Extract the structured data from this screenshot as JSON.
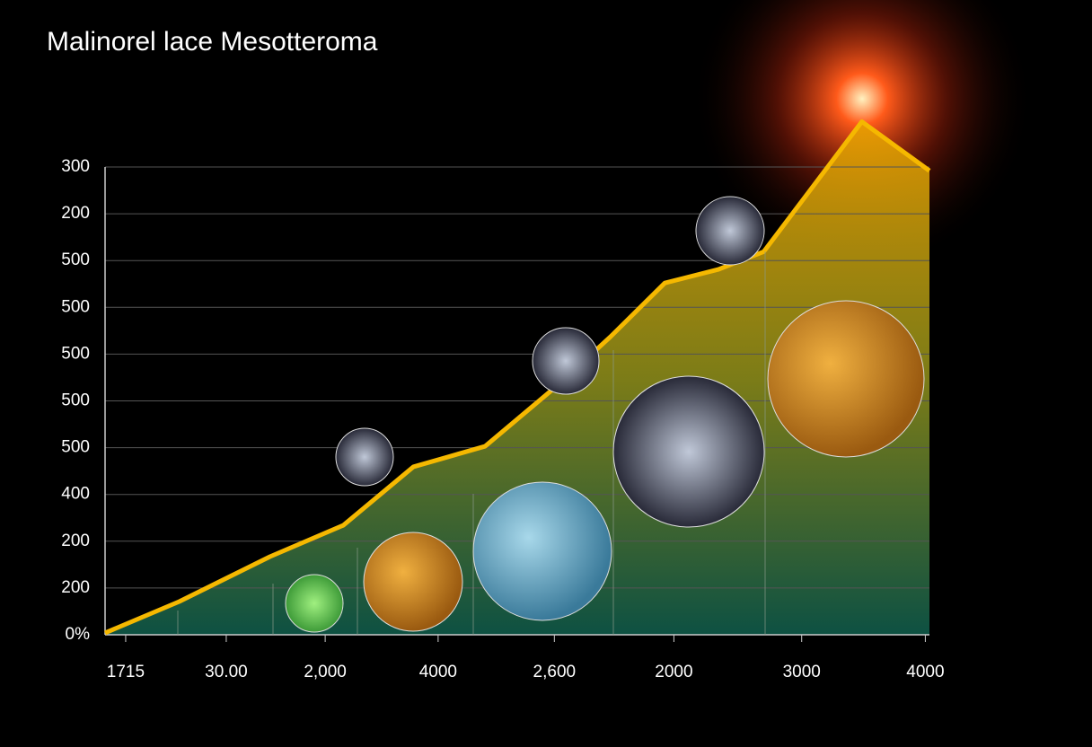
{
  "chart_data": {
    "type": "line",
    "title": "Malinorel lace Mesotteroma",
    "xlim": [
      0,
      10
    ],
    "xticks": [
      {
        "value": 0.25,
        "label": "1715"
      },
      {
        "value": 1.47,
        "label": "30.00"
      },
      {
        "value": 2.67,
        "label": "2,000"
      },
      {
        "value": 4.04,
        "label": "4000"
      },
      {
        "value": 5.45,
        "label": "2,600"
      },
      {
        "value": 6.9,
        "label": "2000"
      },
      {
        "value": 8.45,
        "label": "3000"
      },
      {
        "value": 9.95,
        "label": "4000"
      }
    ],
    "ylim": [
      0,
      10
    ],
    "yticks": [
      {
        "value": 0,
        "label": "0%"
      },
      {
        "value": 1,
        "label": "200"
      },
      {
        "value": 2,
        "label": "200"
      },
      {
        "value": 3,
        "label": "400"
      },
      {
        "value": 4,
        "label": "500"
      },
      {
        "value": 5,
        "label": "500"
      },
      {
        "value": 6,
        "label": "500"
      },
      {
        "value": 7,
        "label": "500"
      },
      {
        "value": 8,
        "label": "500"
      },
      {
        "value": 9,
        "label": "200"
      },
      {
        "value": 10,
        "label": "300"
      }
    ],
    "grid": true,
    "series": [
      {
        "color": "#f5b800",
        "x": [
          0,
          0.9,
          2.0,
          2.89,
          3.74,
          4.61,
          5.48,
          6.13,
          6.79,
          7.44,
          7.99,
          9.18,
          10
        ],
        "values": [
          0.04,
          0.71,
          1.67,
          2.34,
          3.59,
          4.03,
          5.32,
          6.37,
          7.52,
          7.81,
          8.19,
          10.97,
          9.92
        ]
      }
    ]
  }
}
